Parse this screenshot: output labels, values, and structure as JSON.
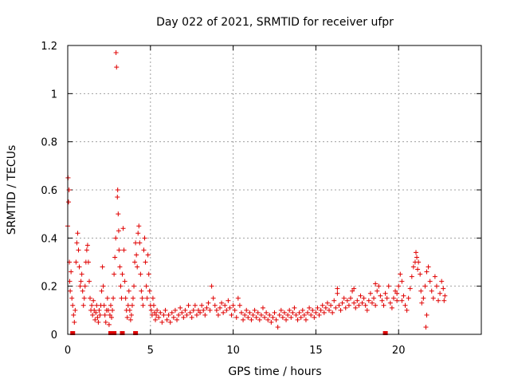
{
  "chart_data": {
    "type": "scatter",
    "title": "Day 022 of 2021, SRMTID for receiver ufpr",
    "xlabel": "GPS time / hours",
    "ylabel": "SRMTID / TECUs",
    "xlim": [
      0,
      25
    ],
    "ylim": [
      0,
      1.2
    ],
    "xticks": [
      0,
      5,
      10,
      15,
      20
    ],
    "yticks": [
      0,
      0.2,
      0.4,
      0.6,
      0.8,
      1.0,
      1.2
    ],
    "xtick_labels": [
      "0",
      "5",
      "10",
      "15",
      "20"
    ],
    "ytick_labels": [
      "0",
      "0.2",
      "0.4",
      "0.6",
      "0.8",
      "1",
      "1.2"
    ],
    "grid": true,
    "marker": "+",
    "color": "#e00000",
    "zero_markers": [
      0.3,
      2.6,
      2.7,
      2.8,
      3.3,
      4.1,
      19.2
    ],
    "series": [
      {
        "name": "SRMTID",
        "points": [
          [
            0.0,
            0.45
          ],
          [
            0.02,
            0.65
          ],
          [
            0.05,
            0.55
          ],
          [
            0.08,
            0.6
          ],
          [
            0.1,
            0.3
          ],
          [
            0.12,
            0.22
          ],
          [
            0.15,
            0.18
          ],
          [
            0.2,
            0.26
          ],
          [
            0.25,
            0.15
          ],
          [
            0.3,
            0.12
          ],
          [
            0.35,
            0.08
          ],
          [
            0.4,
            0.05
          ],
          [
            0.45,
            0.1
          ],
          [
            0.5,
            0.3
          ],
          [
            0.55,
            0.38
          ],
          [
            0.6,
            0.42
          ],
          [
            0.65,
            0.35
          ],
          [
            0.7,
            0.28
          ],
          [
            0.75,
            0.2
          ],
          [
            0.8,
            0.22
          ],
          [
            0.85,
            0.25
          ],
          [
            0.9,
            0.18
          ],
          [
            0.95,
            0.12
          ],
          [
            1.0,
            0.15
          ],
          [
            1.05,
            0.2
          ],
          [
            1.1,
            0.3
          ],
          [
            1.15,
            0.35
          ],
          [
            1.2,
            0.37
          ],
          [
            1.25,
            0.3
          ],
          [
            1.3,
            0.22
          ],
          [
            1.35,
            0.15
          ],
          [
            1.4,
            0.1
          ],
          [
            1.45,
            0.12
          ],
          [
            1.5,
            0.08
          ],
          [
            1.55,
            0.14
          ],
          [
            1.6,
            0.1
          ],
          [
            1.65,
            0.06
          ],
          [
            1.7,
            0.09
          ],
          [
            1.75,
            0.12
          ],
          [
            1.8,
            0.07
          ],
          [
            1.85,
            0.05
          ],
          [
            1.9,
            0.1
          ],
          [
            1.95,
            0.08
          ],
          [
            2.0,
            0.12
          ],
          [
            2.05,
            0.18
          ],
          [
            2.1,
            0.28
          ],
          [
            2.15,
            0.2
          ],
          [
            2.2,
            0.12
          ],
          [
            2.25,
            0.08
          ],
          [
            2.3,
            0.05
          ],
          [
            2.35,
            0.1
          ],
          [
            2.4,
            0.15
          ],
          [
            2.45,
            0.1
          ],
          [
            2.5,
            0.04
          ],
          [
            2.55,
            0.08
          ],
          [
            2.6,
            0.12
          ],
          [
            2.65,
            0.07
          ],
          [
            2.7,
            0.1
          ],
          [
            2.75,
            0.15
          ],
          [
            2.8,
            0.25
          ],
          [
            2.85,
            0.32
          ],
          [
            2.9,
            0.4
          ],
          [
            2.92,
            1.17
          ],
          [
            2.95,
            1.11
          ],
          [
            3.0,
            0.57
          ],
          [
            3.02,
            0.6
          ],
          [
            3.05,
            0.5
          ],
          [
            3.08,
            0.43
          ],
          [
            3.1,
            0.35
          ],
          [
            3.15,
            0.28
          ],
          [
            3.2,
            0.2
          ],
          [
            3.25,
            0.15
          ],
          [
            3.3,
            0.25
          ],
          [
            3.35,
            0.44
          ],
          [
            3.4,
            0.35
          ],
          [
            3.45,
            0.22
          ],
          [
            3.5,
            0.15
          ],
          [
            3.55,
            0.1
          ],
          [
            3.6,
            0.07
          ],
          [
            3.65,
            0.12
          ],
          [
            3.7,
            0.18
          ],
          [
            3.75,
            0.1
          ],
          [
            3.8,
            0.06
          ],
          [
            3.85,
            0.08
          ],
          [
            3.9,
            0.12
          ],
          [
            3.95,
            0.15
          ],
          [
            4.0,
            0.2
          ],
          [
            4.05,
            0.3
          ],
          [
            4.1,
            0.38
          ],
          [
            4.15,
            0.33
          ],
          [
            4.2,
            0.28
          ],
          [
            4.25,
            0.42
          ],
          [
            4.3,
            0.45
          ],
          [
            4.35,
            0.38
          ],
          [
            4.4,
            0.25
          ],
          [
            4.45,
            0.18
          ],
          [
            4.5,
            0.15
          ],
          [
            4.55,
            0.12
          ],
          [
            4.6,
            0.35
          ],
          [
            4.65,
            0.4
          ],
          [
            4.7,
            0.3
          ],
          [
            4.75,
            0.2
          ],
          [
            4.8,
            0.15
          ],
          [
            4.85,
            0.33
          ],
          [
            4.9,
            0.25
          ],
          [
            4.95,
            0.18
          ],
          [
            5.0,
            0.12
          ],
          [
            5.05,
            0.1
          ],
          [
            5.1,
            0.08
          ],
          [
            5.15,
            0.15
          ],
          [
            5.2,
            0.12
          ],
          [
            5.25,
            0.09
          ],
          [
            5.3,
            0.06
          ],
          [
            5.35,
            0.08
          ],
          [
            5.4,
            0.1
          ],
          [
            5.5,
            0.07
          ],
          [
            5.6,
            0.09
          ],
          [
            5.7,
            0.05
          ],
          [
            5.8,
            0.08
          ],
          [
            5.9,
            0.1
          ],
          [
            6.0,
            0.06
          ],
          [
            6.1,
            0.08
          ],
          [
            6.2,
            0.05
          ],
          [
            6.3,
            0.09
          ],
          [
            6.4,
            0.07
          ],
          [
            6.5,
            0.1
          ],
          [
            6.6,
            0.06
          ],
          [
            6.7,
            0.08
          ],
          [
            6.8,
            0.11
          ],
          [
            6.9,
            0.09
          ],
          [
            7.0,
            0.07
          ],
          [
            7.1,
            0.1
          ],
          [
            7.2,
            0.08
          ],
          [
            7.3,
            0.12
          ],
          [
            7.4,
            0.09
          ],
          [
            7.5,
            0.07
          ],
          [
            7.6,
            0.1
          ],
          [
            7.7,
            0.12
          ],
          [
            7.8,
            0.08
          ],
          [
            7.9,
            0.1
          ],
          [
            8.0,
            0.09
          ],
          [
            8.1,
            0.12
          ],
          [
            8.2,
            0.1
          ],
          [
            8.3,
            0.08
          ],
          [
            8.4,
            0.11
          ],
          [
            8.5,
            0.13
          ],
          [
            8.6,
            0.1
          ],
          [
            8.7,
            0.2
          ],
          [
            8.8,
            0.15
          ],
          [
            8.9,
            0.12
          ],
          [
            9.0,
            0.1
          ],
          [
            9.1,
            0.08
          ],
          [
            9.2,
            0.11
          ],
          [
            9.3,
            0.13
          ],
          [
            9.4,
            0.09
          ],
          [
            9.5,
            0.12
          ],
          [
            9.6,
            0.1
          ],
          [
            9.7,
            0.14
          ],
          [
            9.8,
            0.11
          ],
          [
            9.9,
            0.08
          ],
          [
            10.0,
            0.12
          ],
          [
            10.1,
            0.1
          ],
          [
            10.2,
            0.07
          ],
          [
            10.3,
            0.15
          ],
          [
            10.4,
            0.12
          ],
          [
            10.5,
            0.09
          ],
          [
            10.6,
            0.06
          ],
          [
            10.7,
            0.08
          ],
          [
            10.8,
            0.1
          ],
          [
            10.9,
            0.07
          ],
          [
            11.0,
            0.09
          ],
          [
            11.1,
            0.06
          ],
          [
            11.2,
            0.08
          ],
          [
            11.3,
            0.1
          ],
          [
            11.4,
            0.07
          ],
          [
            11.5,
            0.09
          ],
          [
            11.6,
            0.06
          ],
          [
            11.7,
            0.08
          ],
          [
            11.8,
            0.11
          ],
          [
            11.9,
            0.07
          ],
          [
            12.0,
            0.09
          ],
          [
            12.1,
            0.06
          ],
          [
            12.2,
            0.08
          ],
          [
            12.3,
            0.05
          ],
          [
            12.4,
            0.07
          ],
          [
            12.5,
            0.09
          ],
          [
            12.6,
            0.06
          ],
          [
            12.7,
            0.03
          ],
          [
            12.8,
            0.08
          ],
          [
            12.9,
            0.1
          ],
          [
            13.0,
            0.07
          ],
          [
            13.1,
            0.09
          ],
          [
            13.2,
            0.06
          ],
          [
            13.3,
            0.08
          ],
          [
            13.4,
            0.1
          ],
          [
            13.5,
            0.07
          ],
          [
            13.6,
            0.09
          ],
          [
            13.7,
            0.11
          ],
          [
            13.8,
            0.08
          ],
          [
            13.9,
            0.06
          ],
          [
            14.0,
            0.09
          ],
          [
            14.1,
            0.07
          ],
          [
            14.2,
            0.1
          ],
          [
            14.3,
            0.08
          ],
          [
            14.4,
            0.06
          ],
          [
            14.5,
            0.09
          ],
          [
            14.6,
            0.11
          ],
          [
            14.7,
            0.08
          ],
          [
            14.8,
            0.1
          ],
          [
            14.9,
            0.07
          ],
          [
            15.0,
            0.09
          ],
          [
            15.1,
            0.11
          ],
          [
            15.2,
            0.08
          ],
          [
            15.3,
            0.1
          ],
          [
            15.4,
            0.12
          ],
          [
            15.5,
            0.09
          ],
          [
            15.6,
            0.11
          ],
          [
            15.7,
            0.13
          ],
          [
            15.8,
            0.1
          ],
          [
            15.9,
            0.12
          ],
          [
            16.0,
            0.09
          ],
          [
            16.1,
            0.14
          ],
          [
            16.2,
            0.11
          ],
          [
            16.3,
            0.19
          ],
          [
            16.4,
            0.12
          ],
          [
            16.5,
            0.1
          ],
          [
            16.6,
            0.13
          ],
          [
            16.7,
            0.15
          ],
          [
            16.8,
            0.11
          ],
          [
            16.9,
            0.14
          ],
          [
            17.0,
            0.12
          ],
          [
            17.1,
            0.15
          ],
          [
            17.2,
            0.18
          ],
          [
            17.3,
            0.13
          ],
          [
            17.4,
            0.11
          ],
          [
            17.5,
            0.14
          ],
          [
            17.6,
            0.12
          ],
          [
            17.7,
            0.16
          ],
          [
            17.8,
            0.13
          ],
          [
            17.9,
            0.15
          ],
          [
            18.0,
            0.12
          ],
          [
            18.1,
            0.1
          ],
          [
            18.2,
            0.14
          ],
          [
            18.3,
            0.17
          ],
          [
            18.4,
            0.13
          ],
          [
            18.5,
            0.15
          ],
          [
            18.6,
            0.12
          ],
          [
            18.7,
            0.18
          ],
          [
            18.8,
            0.2
          ],
          [
            18.9,
            0.16
          ],
          [
            19.0,
            0.14
          ],
          [
            19.1,
            0.12
          ],
          [
            19.2,
            0.17
          ],
          [
            19.3,
            0.15
          ],
          [
            19.4,
            0.2
          ],
          [
            19.5,
            0.13
          ],
          [
            19.6,
            0.11
          ],
          [
            19.7,
            0.15
          ],
          [
            19.8,
            0.18
          ],
          [
            19.9,
            0.14
          ],
          [
            20.0,
            0.2
          ],
          [
            20.1,
            0.25
          ],
          [
            20.2,
            0.22
          ],
          [
            20.3,
            0.16
          ],
          [
            20.4,
            0.12
          ],
          [
            20.5,
            0.1
          ],
          [
            20.6,
            0.15
          ],
          [
            20.7,
            0.19
          ],
          [
            20.8,
            0.24
          ],
          [
            20.9,
            0.28
          ],
          [
            21.0,
            0.3
          ],
          [
            21.05,
            0.34
          ],
          [
            21.1,
            0.32
          ],
          [
            21.15,
            0.27
          ],
          [
            21.2,
            0.3
          ],
          [
            21.3,
            0.25
          ],
          [
            21.35,
            0.18
          ],
          [
            21.4,
            0.13
          ],
          [
            21.5,
            0.15
          ],
          [
            21.6,
            0.2
          ],
          [
            21.7,
            0.26
          ],
          [
            21.8,
            0.28
          ],
          [
            21.9,
            0.22
          ],
          [
            22.0,
            0.18
          ],
          [
            22.1,
            0.15
          ],
          [
            22.2,
            0.24
          ],
          [
            22.3,
            0.2
          ],
          [
            22.4,
            0.14
          ],
          [
            22.5,
            0.17
          ],
          [
            22.6,
            0.22
          ],
          [
            22.7,
            0.19
          ],
          [
            22.75,
            0.14
          ],
          [
            22.8,
            0.16
          ],
          [
            21.65,
            0.03
          ],
          [
            21.7,
            0.08
          ],
          [
            20.2,
            0.14
          ],
          [
            19.9,
            0.17
          ],
          [
            16.3,
            0.17
          ],
          [
            17.3,
            0.19
          ],
          [
            18.6,
            0.21
          ]
        ]
      }
    ]
  }
}
